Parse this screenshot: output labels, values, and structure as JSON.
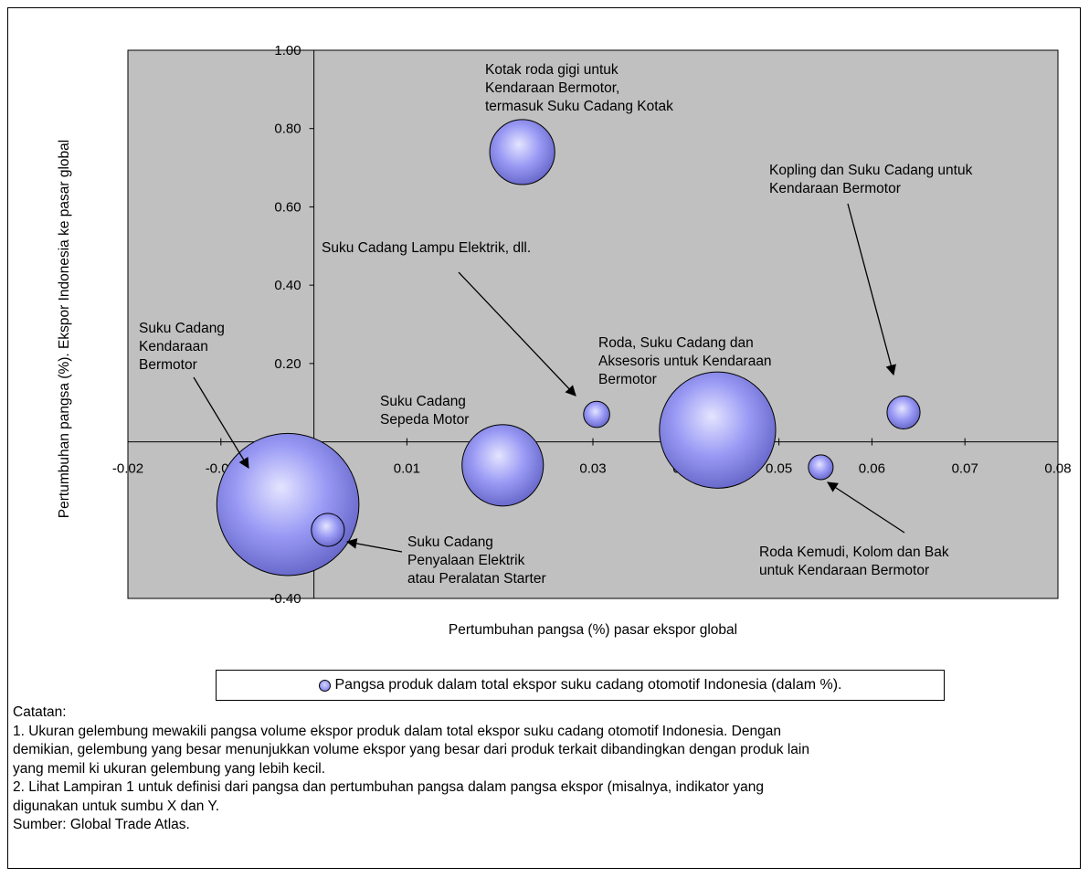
{
  "chart_data": {
    "type": "bubble",
    "xlabel": "Pertumbuhan pangsa (%) pasar ekspor global",
    "ylabel": "Pertumbuhan pangsa (%). Ekspor Indonesia ke pasar global",
    "xlim": [
      -0.02,
      0.08
    ],
    "ylim": [
      -0.4,
      1.0
    ],
    "x_ticks": [
      "-0.02",
      "-0.01",
      "0.00",
      "0.01",
      "0.02",
      "0.03",
      "0.04",
      "0.05",
      "0.06",
      "0.07",
      "0.08"
    ],
    "y_ticks": [
      "1.00",
      "0.80",
      "0.60",
      "0.40",
      "0.20",
      "0.00",
      "-0.20",
      "-0.40"
    ],
    "plot_background": "#c0c0c0",
    "bubble_color": "#9999ff",
    "legend": "Pangsa produk dalam total ekspor suku cadang otomotif Indonesia (dalam %).",
    "points": [
      {
        "label_lines": [
          "Kotak roda gigi untuk",
          "Kendaraan Bermotor,",
          "termasuk Suku Cadang Kotak"
        ],
        "x": 0.0224,
        "y": 0.74,
        "size": 6.2
      },
      {
        "label_lines": [
          "Suku Cadang",
          "Kendaraan",
          "Bermotor"
        ],
        "x": -0.0028,
        "y": -0.16,
        "size": 29.6
      },
      {
        "label_lines": [
          "Suku Cadang",
          "Sepeda Motor"
        ],
        "x": 0.0203,
        "y": -0.06,
        "size": 9.7
      },
      {
        "label_lines": [
          "Suku Cadang Lampu Elektrik, dll."
        ],
        "x": 0.0304,
        "y": 0.07,
        "size": 1.0
      },
      {
        "label_lines": [
          "Roda, Suku Cadang dan",
          "Aksesoris untuk Kendaraan",
          "Bermotor"
        ],
        "x": 0.0434,
        "y": 0.03,
        "size": 19.8
      },
      {
        "label_lines": [
          "Kopling dan Suku Cadang untuk",
          "Kendaraan Bermotor"
        ],
        "x": 0.0634,
        "y": 0.075,
        "size": 1.6
      },
      {
        "label_lines": [
          "Roda Kemudi, Kolom dan Bak",
          "untuk Kendaraan Bermotor"
        ],
        "x": 0.0545,
        "y": -0.065,
        "size": 0.9
      },
      {
        "label_lines": [
          "Suku Cadang",
          "Penyalaan Elektrik",
          "atau Peralatan Starter"
        ],
        "x": 0.0015,
        "y": -0.225,
        "size": 1.6
      }
    ]
  },
  "notes": [
    "Catatan:",
    "1. Ukuran gelembung mewakili pangsa volume ekspor produk dalam total ekspor suku cadang otomotif Indonesia. Dengan",
    "demikian, gelembung yang besar menunjukkan volume ekspor yang besar dari produk terkait dibandingkan dengan produk lain",
    "yang memil ki ukuran gelembung yang lebih kecil.",
    "2. Lihat Lampiran 1 untuk definisi dari pangsa dan pertumbuhan pangsa dalam pangsa ekspor (misalnya, indikator yang",
    "digunakan untuk sumbu X dan Y.",
    "Sumber: Global Trade Atlas."
  ]
}
